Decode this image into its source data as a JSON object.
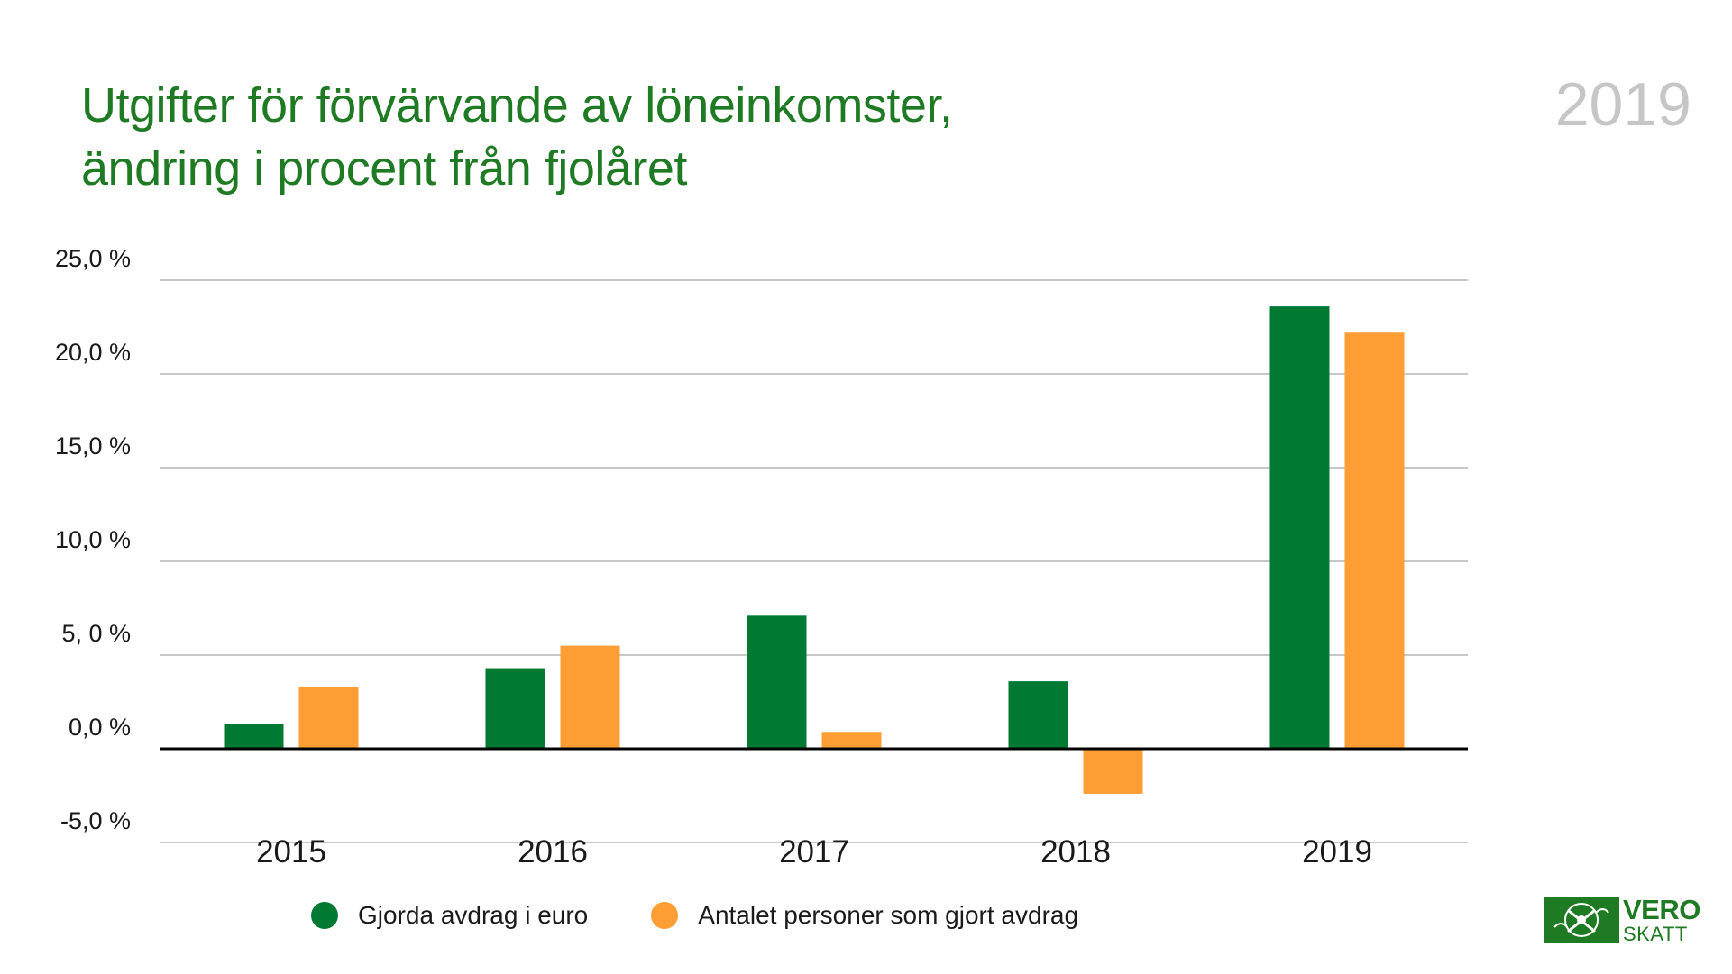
{
  "header": {
    "title_line1": "Utgifter för förvärvande av löneinkomster,",
    "title_line2": "ändring i procent från fjolåret",
    "year_badge": "2019"
  },
  "colors": {
    "green": "#007a33",
    "orange": "#ff9e35",
    "title_green": "#1e7a23",
    "grid": "#c8c8c8",
    "zero_line": "#000000",
    "badge_grey": "#c6c6c6"
  },
  "chart_data": {
    "type": "bar",
    "title": "Utgifter för förvärvande av löneinkomster, ändring i procent från fjolåret",
    "categories": [
      "2015",
      "2016",
      "2017",
      "2018",
      "2019"
    ],
    "series": [
      {
        "name": "Gjorda avdrag i euro",
        "color": "#007a33",
        "values": [
          1.3,
          4.3,
          7.1,
          3.6,
          23.6
        ]
      },
      {
        "name": "Antalet personer som gjort avdrag",
        "color": "#ff9e35",
        "values": [
          3.3,
          5.5,
          0.9,
          -2.4,
          22.2
        ]
      }
    ],
    "ylim": [
      -5,
      25
    ],
    "yticks": [
      25,
      20,
      15,
      10,
      5,
      0,
      -5
    ],
    "ytick_labels": [
      "25,0 %",
      "20,0 %",
      "15,0 %",
      "10,0 %",
      "5, 0 %",
      "0,0 %",
      "-5,0 %"
    ],
    "xlabel": "",
    "ylabel": "",
    "legend_position": "bottom-left",
    "grid": true
  },
  "logo": {
    "line1": "VERO",
    "line2": "SKATT"
  }
}
